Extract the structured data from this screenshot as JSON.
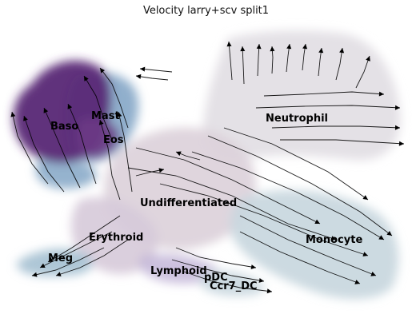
{
  "title": "Velocity larry+scv split1",
  "clusters": [
    {
      "name": "Baso",
      "color": "#5e2d79"
    },
    {
      "name": "Mast",
      "color": "#7ea2c6"
    },
    {
      "name": "Eos",
      "color": "#5e2d79"
    },
    {
      "name": "Neutrophil",
      "color": "#dcd7dd"
    },
    {
      "name": "Undifferentiated",
      "color": "#d9cbd6"
    },
    {
      "name": "Erythroid",
      "color": "#c9b9d1"
    },
    {
      "name": "Monocyte",
      "color": "#b9cfd9"
    },
    {
      "name": "Meg",
      "color": "#9fbdd1"
    },
    {
      "name": "Lymphoid",
      "color": "#b8abd2"
    },
    {
      "name": "pDC",
      "color": "#cfc7df"
    },
    {
      "name": "Ccr7_DC",
      "color": "#c7d7e0"
    }
  ]
}
